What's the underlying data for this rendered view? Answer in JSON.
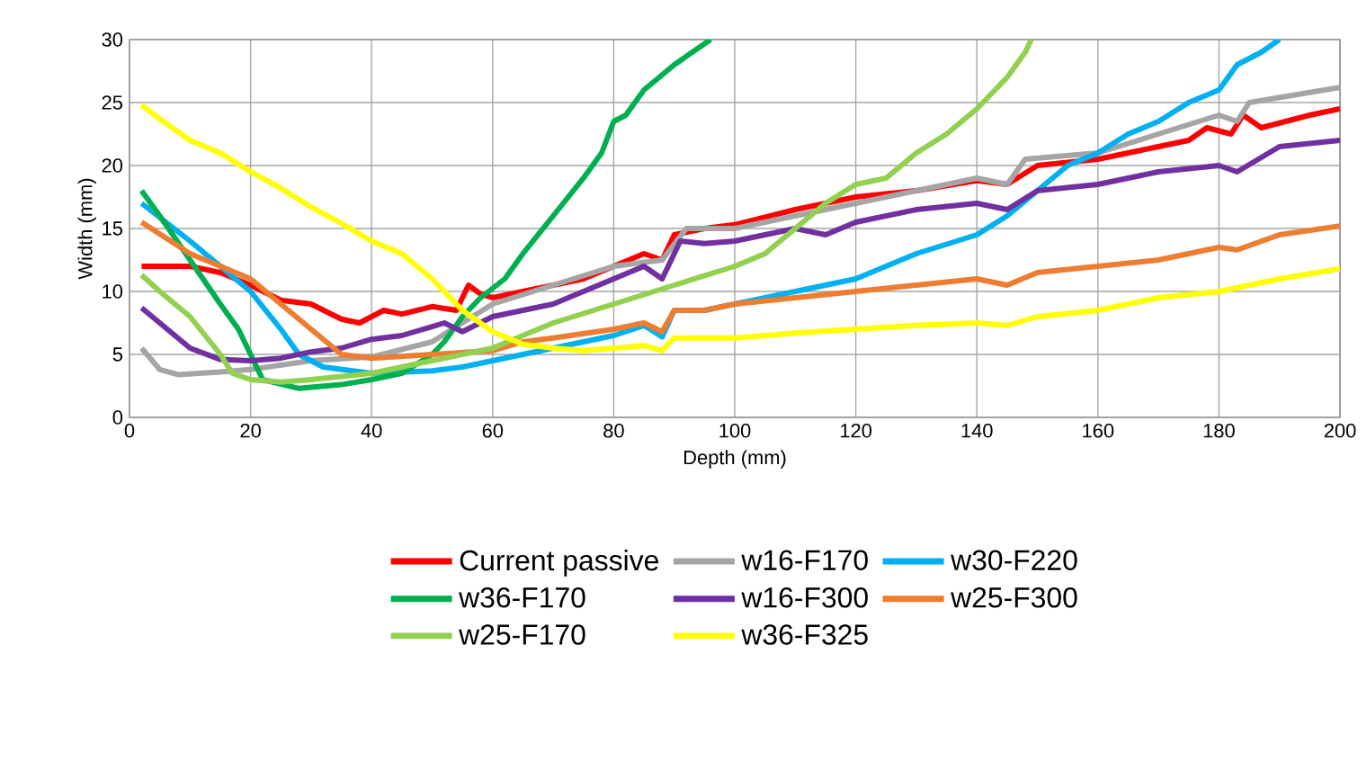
{
  "chart_data": {
    "type": "line",
    "xlabel": "Depth (mm)",
    "ylabel": "Width (mm)",
    "xlim": [
      0,
      200
    ],
    "ylim": [
      0,
      30
    ],
    "xticks": [
      0,
      20,
      40,
      60,
      80,
      100,
      120,
      140,
      160,
      180,
      200
    ],
    "yticks": [
      0,
      5,
      10,
      15,
      20,
      25,
      30
    ],
    "grid": true,
    "legend": "bottom",
    "marker": "none",
    "line_style": "solid",
    "series": [
      {
        "name": "Current passive",
        "color": "#ff0000",
        "x": [
          2,
          10,
          15,
          20,
          25,
          30,
          35,
          38,
          42,
          45,
          50,
          54,
          56,
          58,
          60,
          65,
          70,
          75,
          80,
          85,
          88,
          90,
          95,
          100,
          110,
          120,
          130,
          140,
          145,
          150,
          160,
          170,
          175,
          178,
          182,
          184,
          187,
          195,
          200
        ],
        "values": [
          12,
          12,
          11.5,
          10.5,
          9.3,
          9,
          7.8,
          7.5,
          8.5,
          8.2,
          8.8,
          8.5,
          10.5,
          9.8,
          9.5,
          10,
          10.5,
          11,
          12,
          13,
          12.5,
          14.5,
          15,
          15.3,
          16.5,
          17.5,
          18,
          18.8,
          18.5,
          20,
          20.5,
          21.5,
          22,
          23,
          22.5,
          24,
          23,
          24,
          24.5
        ]
      },
      {
        "name": "w16-F170",
        "color": "#a5a5a5",
        "x": [
          2,
          5,
          8,
          15,
          20,
          30,
          40,
          50,
          60,
          70,
          80,
          88,
          92,
          100,
          110,
          120,
          130,
          140,
          145,
          148,
          160,
          170,
          180,
          183,
          185,
          195,
          200
        ],
        "values": [
          5.5,
          3.8,
          3.4,
          3.6,
          3.8,
          4.5,
          4.8,
          6,
          9,
          10.5,
          12,
          12.5,
          15,
          15,
          16,
          17,
          18,
          19,
          18.5,
          20.5,
          21,
          22.5,
          24,
          23.5,
          25,
          25.8,
          26.2
        ]
      },
      {
        "name": "w30-F220",
        "color": "#00b0f0",
        "x": [
          2,
          10,
          15,
          20,
          25,
          28,
          32,
          40,
          50,
          55,
          60,
          70,
          80,
          85,
          88,
          90,
          95,
          100,
          110,
          120,
          130,
          140,
          145,
          150,
          155,
          160,
          165,
          170,
          175,
          180,
          183,
          187,
          190
        ],
        "values": [
          17,
          14,
          12,
          10,
          7,
          5,
          4,
          3.5,
          3.7,
          4,
          4.5,
          5.5,
          6.5,
          7.3,
          6.4,
          8.5,
          8.5,
          9,
          10,
          11,
          13,
          14.5,
          16,
          18,
          20,
          21,
          22.5,
          23.5,
          25,
          26,
          28,
          29,
          30
        ]
      },
      {
        "name": "w36-F170",
        "color": "#00b050",
        "x": [
          2,
          5,
          10,
          15,
          18,
          20,
          22,
          28,
          35,
          40,
          45,
          50,
          52,
          55,
          58,
          62,
          65,
          70,
          75,
          78,
          80,
          82,
          85,
          90,
          96
        ],
        "values": [
          18,
          16,
          12.5,
          9,
          7,
          5,
          3,
          2.3,
          2.6,
          3,
          3.5,
          5,
          6,
          8,
          9.5,
          11,
          13,
          16,
          19,
          21,
          23.5,
          24,
          26,
          28,
          30
        ]
      },
      {
        "name": "w16-F300",
        "color": "#7030a0",
        "x": [
          2,
          5,
          10,
          15,
          20,
          25,
          30,
          35,
          40,
          45,
          50,
          52,
          55,
          60,
          70,
          80,
          85,
          88,
          91,
          95,
          100,
          105,
          110,
          115,
          120,
          130,
          140,
          145,
          150,
          160,
          170,
          180,
          183,
          190,
          200
        ],
        "values": [
          8.7,
          7.5,
          5.5,
          4.6,
          4.5,
          4.7,
          5.2,
          5.5,
          6.2,
          6.5,
          7.2,
          7.5,
          6.8,
          8,
          9,
          11,
          12,
          11,
          14,
          13.8,
          14,
          14.5,
          15,
          14.5,
          15.5,
          16.5,
          17,
          16.5,
          18,
          18.5,
          19.5,
          20,
          19.5,
          21.5,
          22
        ]
      },
      {
        "name": "w25-F300",
        "color": "#ed7d31",
        "x": [
          2,
          10,
          15,
          20,
          25,
          30,
          35,
          40,
          50,
          60,
          65,
          70,
          80,
          85,
          88,
          90,
          95,
          100,
          110,
          120,
          130,
          140,
          145,
          150,
          160,
          170,
          180,
          183,
          190,
          200
        ],
        "values": [
          15.5,
          13,
          12,
          11,
          9,
          7,
          5,
          4.7,
          5,
          5.3,
          6,
          6.3,
          7,
          7.5,
          6.8,
          8.5,
          8.5,
          9,
          9.5,
          10,
          10.5,
          11,
          10.5,
          11.5,
          12,
          12.5,
          13.5,
          13.3,
          14.5,
          15.2
        ]
      },
      {
        "name": "w25-F170",
        "color": "#92d050",
        "x": [
          2,
          5,
          10,
          15,
          17,
          20,
          25,
          30,
          40,
          50,
          60,
          70,
          80,
          90,
          100,
          105,
          110,
          115,
          120,
          125,
          130,
          135,
          140,
          145,
          148,
          149
        ],
        "values": [
          11.3,
          10,
          8,
          5,
          3.5,
          3,
          2.8,
          3,
          3.5,
          4.5,
          5.5,
          7.5,
          9,
          10.5,
          12,
          13,
          15,
          17,
          18.5,
          19,
          21,
          22.5,
          24.5,
          27,
          29,
          30
        ]
      },
      {
        "name": "w36-F325",
        "color": "#ffff00",
        "x": [
          2,
          5,
          10,
          15,
          20,
          25,
          30,
          35,
          40,
          45,
          50,
          55,
          60,
          65,
          70,
          75,
          80,
          85,
          88,
          90,
          100,
          110,
          120,
          130,
          140,
          145,
          150,
          160,
          170,
          180,
          190,
          200
        ],
        "values": [
          24.8,
          23.7,
          22,
          21,
          19.5,
          18.2,
          16.7,
          15.4,
          14,
          13,
          11,
          8.5,
          6.8,
          5.8,
          5.5,
          5.3,
          5.5,
          5.7,
          5.3,
          6.3,
          6.3,
          6.7,
          7,
          7.3,
          7.5,
          7.3,
          8,
          8.5,
          9.5,
          10,
          11,
          11.8
        ]
      }
    ]
  }
}
